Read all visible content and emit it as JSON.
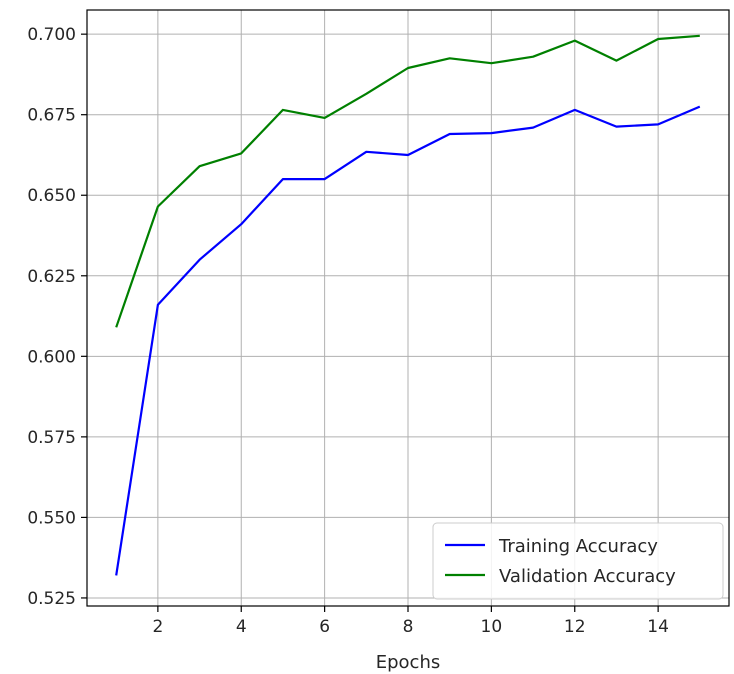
{
  "chart_data": {
    "type": "line",
    "title": "",
    "xlabel": "Epochs",
    "ylabel": "",
    "x": [
      1,
      2,
      3,
      4,
      5,
      6,
      7,
      8,
      9,
      10,
      11,
      12,
      13,
      14,
      15
    ],
    "series": [
      {
        "name": "Training Accuracy",
        "color": "#0000ff",
        "values": [
          0.532,
          0.616,
          0.63,
          0.641,
          0.655,
          0.655,
          0.6635,
          0.6625,
          0.669,
          0.6693,
          0.671,
          0.6765,
          0.6713,
          0.672,
          0.6775
        ]
      },
      {
        "name": "Validation Accuracy",
        "color": "#008000",
        "values": [
          0.609,
          0.6465,
          0.659,
          0.663,
          0.6765,
          0.674,
          0.6815,
          0.6895,
          0.6925,
          0.691,
          0.693,
          0.698,
          0.6918,
          0.6985,
          0.6995
        ]
      }
    ],
    "xlim": [
      0.3,
      15.7
    ],
    "ylim": [
      0.5225,
      0.7075
    ],
    "xticks": [
      2,
      4,
      6,
      8,
      10,
      12,
      14
    ],
    "xtick_labels": [
      "2",
      "4",
      "6",
      "8",
      "10",
      "12",
      "14"
    ],
    "yticks": [
      0.525,
      0.55,
      0.575,
      0.6,
      0.625,
      0.65,
      0.675,
      0.7
    ],
    "ytick_labels": [
      "0.525",
      "0.550",
      "0.575",
      "0.600",
      "0.625",
      "0.650",
      "0.675",
      "0.700"
    ],
    "grid": true,
    "legend_position": "lower-right"
  }
}
